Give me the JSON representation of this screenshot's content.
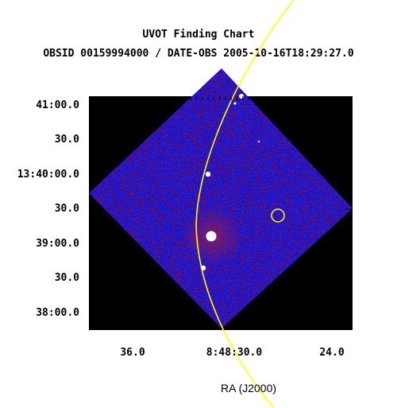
{
  "header": {
    "title": "UVOT Finding Chart",
    "subtitle": "OBSID 00159994000 / DATE-OBS 2005-10-16T18:29:27.0"
  },
  "axes": {
    "xlabel": "RA (J2000)",
    "y_ticks": [
      "41:00.0",
      "30.0",
      "13:40:00.0",
      "30.0",
      "39:00.0",
      "30.0",
      "38:00.0"
    ],
    "x_ticks": [
      "36.0",
      "8:48:30.0",
      "24.0"
    ]
  },
  "colors": {
    "image_background": "#000000",
    "sky_field": "#1a14c8",
    "hot_pixels": "#d01818",
    "overlay": "#ffff00"
  }
}
